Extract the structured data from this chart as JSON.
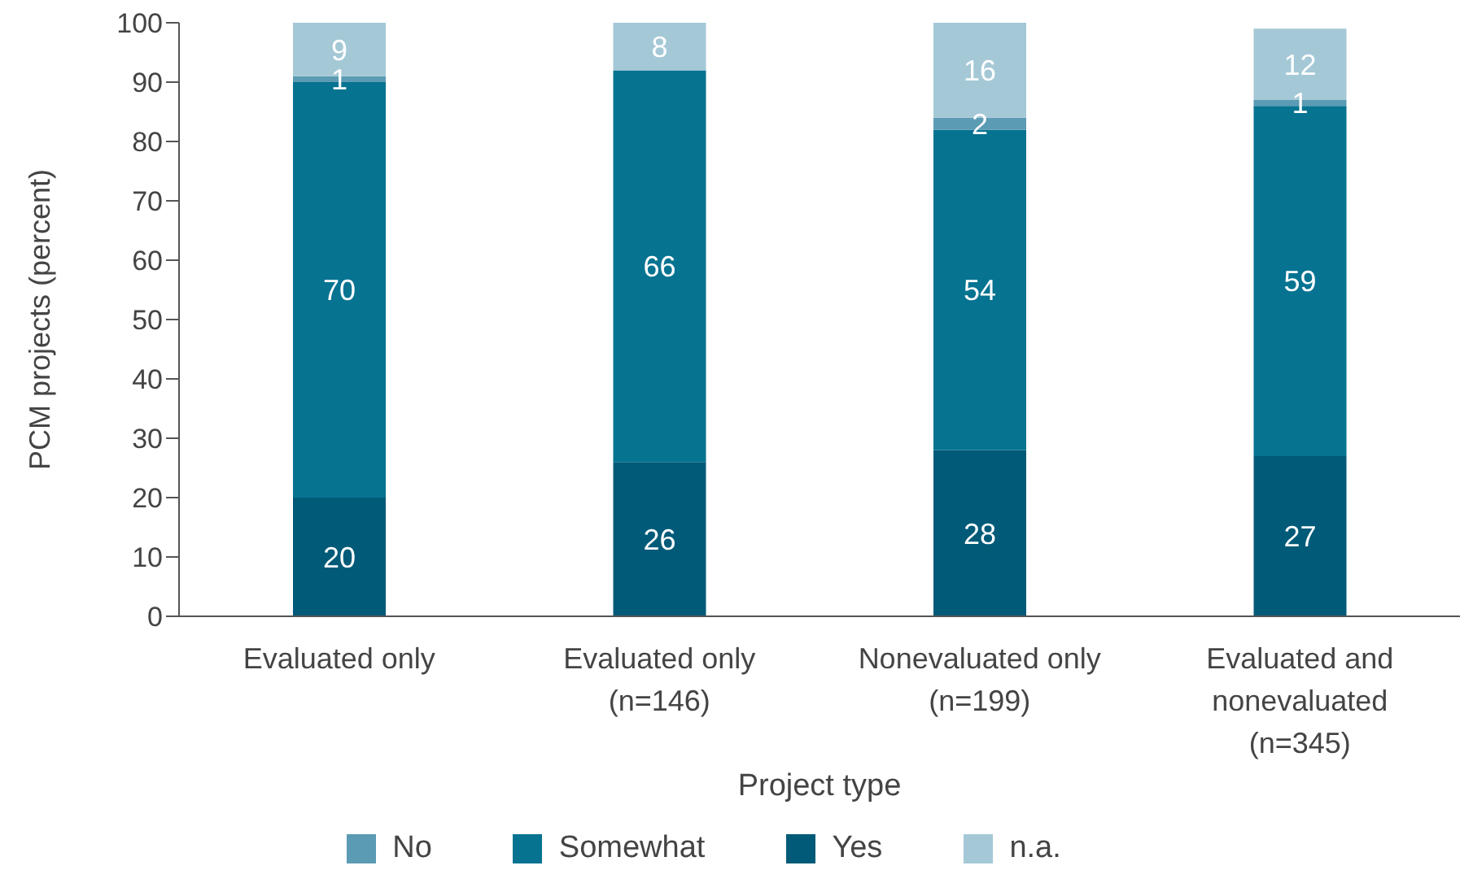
{
  "chart_data": {
    "type": "bar",
    "stacked": true,
    "ylabel": "PCM projects (percent)",
    "xlabel": "Project type",
    "categories": [
      "Evaluated only",
      "Evaluated only (n=146)",
      "Nonevaluated only (n=199)",
      "Evaluated and nonevaluated (n=345)"
    ],
    "series": [
      {
        "name": "Yes",
        "color": "#005a78",
        "values": [
          20,
          26,
          28,
          27
        ]
      },
      {
        "name": "Somewhat",
        "color": "#067391",
        "values": [
          70,
          66,
          54,
          59
        ]
      },
      {
        "name": "No",
        "color": "#5b9bb3",
        "values": [
          1,
          null,
          2,
          1
        ]
      },
      {
        "name": "n.a.",
        "color": "#a4c8d6",
        "values": [
          9,
          8,
          16,
          12
        ]
      }
    ],
    "ylim": [
      0,
      100
    ],
    "yticks": [
      0,
      10,
      20,
      30,
      40,
      50,
      60,
      70,
      80,
      90,
      100
    ],
    "data_labels": true,
    "legend": "bottom",
    "grid": false
  }
}
